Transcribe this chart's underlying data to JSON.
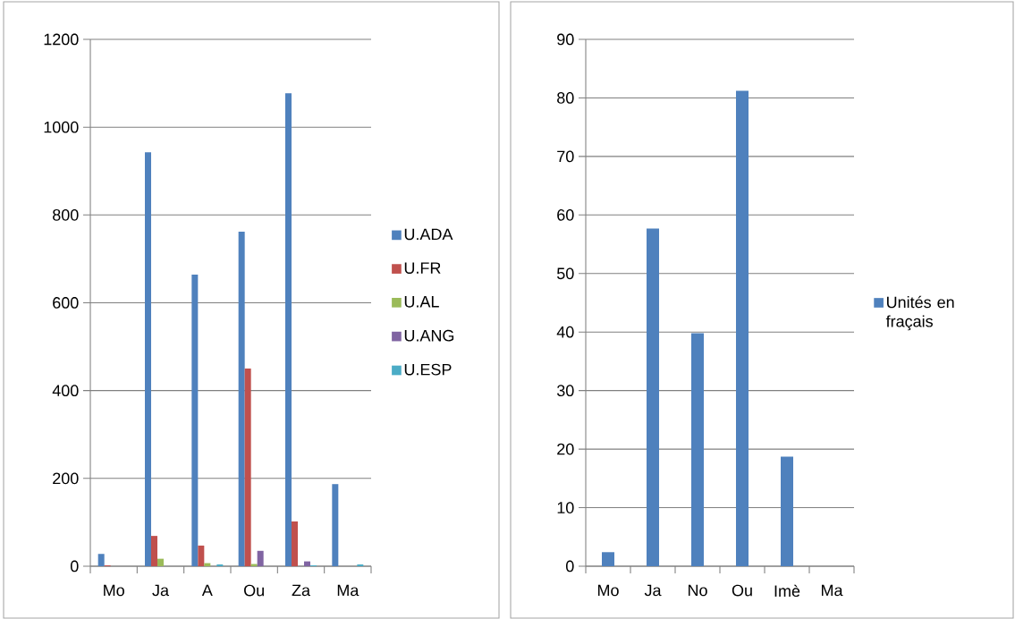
{
  "chart_data": [
    {
      "type": "bar",
      "categories": [
        "Mo",
        "Ja",
        "A",
        "Ou",
        "Za",
        "Ma"
      ],
      "ylim": [
        0,
        1200
      ],
      "yticks": [
        0,
        200,
        400,
        600,
        800,
        1000,
        1200
      ],
      "grid": "y",
      "legend": "right",
      "series": [
        {
          "name": "U.ADA",
          "color": "#4f81bd",
          "values": [
            28,
            943,
            664,
            762,
            1077,
            187
          ]
        },
        {
          "name": "U.FR",
          "color": "#c0504d",
          "values": [
            2,
            69,
            47,
            450,
            102,
            0
          ]
        },
        {
          "name": "U.AL",
          "color": "#9bbb59",
          "values": [
            0,
            17,
            7,
            5,
            0,
            0
          ]
        },
        {
          "name": "U.ANG",
          "color": "#8064a2",
          "values": [
            0,
            0,
            0,
            35,
            11,
            0
          ]
        },
        {
          "name": "U.ESP",
          "color": "#4bacc6",
          "values": [
            0,
            0,
            4,
            0,
            2,
            4
          ]
        }
      ]
    },
    {
      "type": "bar",
      "categories": [
        "Mo",
        "Ja",
        "No",
        "Ou",
        "Imè",
        "Ma"
      ],
      "ylim": [
        0,
        90
      ],
      "yticks": [
        0,
        10,
        20,
        30,
        40,
        50,
        60,
        70,
        80,
        90
      ],
      "grid": "y",
      "legend": "right",
      "series": [
        {
          "name": "Unités en fraçais",
          "color": "#4f81bd",
          "values": [
            2.4,
            57.7,
            39.8,
            81.2,
            18.7,
            0
          ]
        }
      ]
    }
  ]
}
